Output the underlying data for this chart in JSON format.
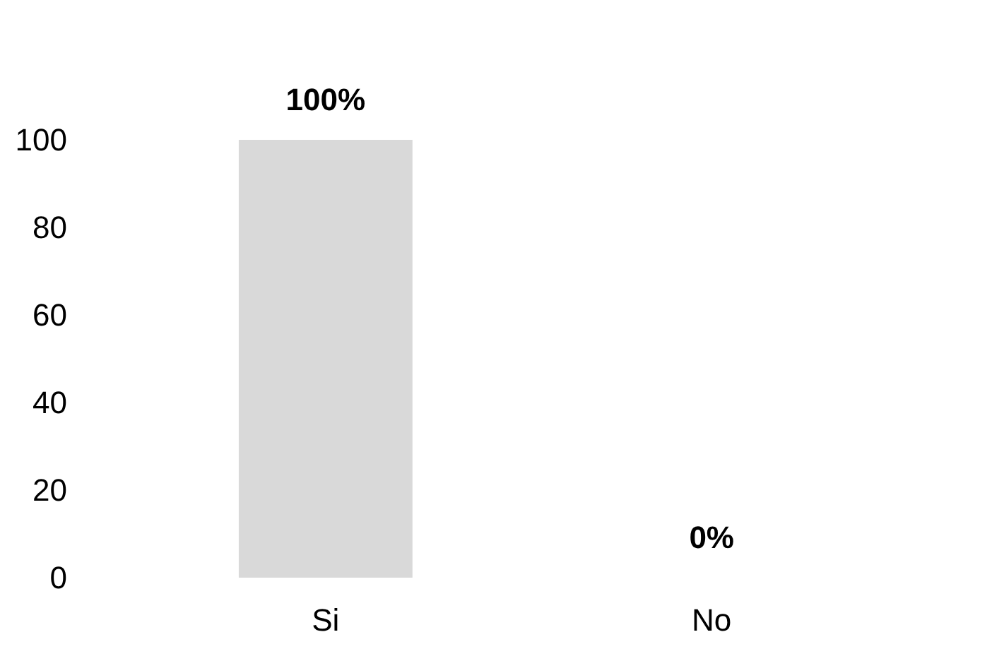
{
  "chart_data": {
    "type": "bar",
    "categories": [
      "Si",
      "No"
    ],
    "values": [
      100,
      0
    ],
    "value_labels": [
      "100%",
      "0%"
    ],
    "color": "#d9d9d9",
    "ylim": [
      0,
      100
    ],
    "yticks": [
      0,
      20,
      40,
      60,
      80,
      100
    ]
  }
}
